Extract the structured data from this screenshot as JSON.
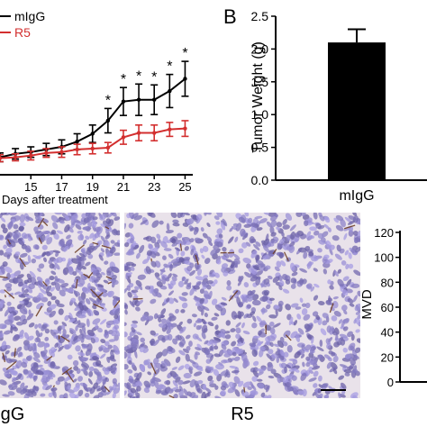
{
  "panel_b_letter": "B",
  "charts": {
    "growth": {
      "type": "line",
      "xlabel": "Days after treatment",
      "x": [
        13,
        14,
        15,
        16,
        17,
        18,
        19,
        20,
        21,
        22,
        23,
        24,
        25
      ],
      "x_ticks": [
        15,
        17,
        19,
        21,
        23,
        25
      ],
      "xlim": [
        13,
        25.5
      ],
      "ylim": [
        0,
        1900
      ],
      "series": [
        {
          "name": "mIgG",
          "color": "#000000",
          "y": [
            200,
            240,
            260,
            290,
            320,
            380,
            470,
            620,
            840,
            860,
            860,
            960,
            1100
          ],
          "err": [
            50,
            60,
            60,
            70,
            80,
            90,
            100,
            140,
            160,
            180,
            170,
            190,
            200
          ]
        },
        {
          "name": "R5",
          "color": "#d32f2f",
          "y": [
            190,
            200,
            220,
            250,
            260,
            290,
            300,
            310,
            430,
            480,
            480,
            520,
            530
          ],
          "err": [
            40,
            40,
            50,
            50,
            60,
            60,
            60,
            60,
            80,
            90,
            90,
            80,
            90
          ]
        }
      ],
      "significance_marks": [
        {
          "x": 20,
          "label": "*"
        },
        {
          "x": 21,
          "label": "*"
        },
        {
          "x": 22,
          "label": "*"
        },
        {
          "x": 23,
          "label": "*"
        },
        {
          "x": 24,
          "label": "*"
        },
        {
          "x": 25,
          "label": "*"
        }
      ]
    },
    "weight": {
      "type": "bar",
      "ylabel": "Tumor Weight (g)",
      "categories": [
        "mIgG"
      ],
      "values": [
        2.1
      ],
      "errors": [
        0.2
      ],
      "ylim": [
        0,
        2.5
      ],
      "y_ticks": [
        "0.0",
        "0.5",
        "1.0",
        "1.5",
        "2.0",
        "2.5"
      ],
      "bar_color": "#000000"
    },
    "mvd": {
      "type": "bar",
      "ylabel": "MVD",
      "ylim": [
        0,
        120
      ],
      "y_ticks": [
        "0",
        "20",
        "40",
        "60",
        "80",
        "100",
        "120"
      ]
    }
  },
  "images": [
    {
      "label": "mIgG",
      "display_label": "gG"
    },
    {
      "label": "R5",
      "display_label": "R5"
    }
  ]
}
